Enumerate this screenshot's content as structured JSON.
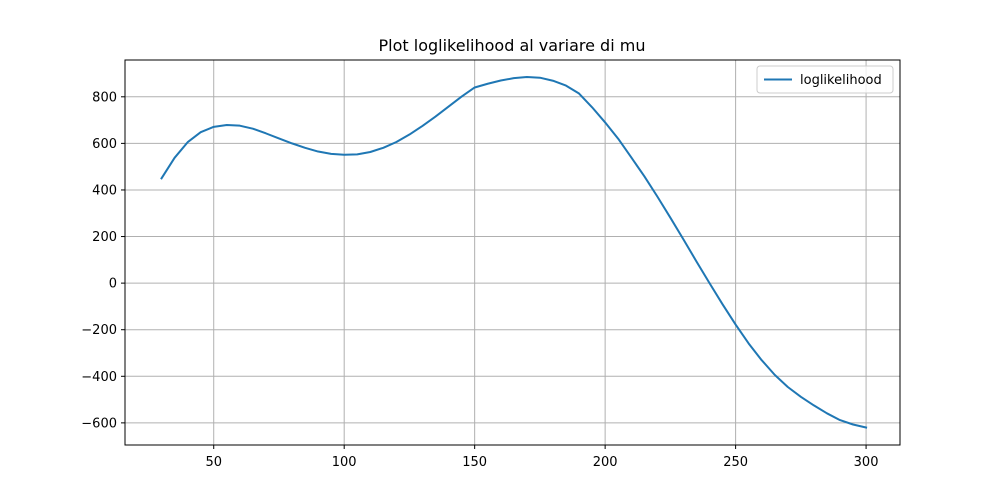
{
  "chart_data": {
    "type": "line",
    "title": "Plot loglikelihood al variare di mu",
    "xlabel": "",
    "ylabel": "",
    "xlim": [
      16,
      313
    ],
    "ylim": [
      -695,
      958
    ],
    "xticks": [
      50,
      100,
      150,
      200,
      250,
      300
    ],
    "yticks": [
      -600,
      -400,
      -200,
      0,
      200,
      400,
      600,
      800
    ],
    "ytick_labels": [
      "−600",
      "−400",
      "−200",
      "0",
      "200",
      "400",
      "600",
      "800"
    ],
    "grid": true,
    "legend_position": "top-right",
    "series": [
      {
        "name": "loglikelihood",
        "color": "#1f77b4",
        "x": [
          30,
          35,
          40,
          45,
          50,
          55,
          60,
          65,
          70,
          75,
          80,
          85,
          90,
          95,
          100,
          105,
          110,
          115,
          120,
          125,
          130,
          135,
          140,
          145,
          150,
          155,
          160,
          165,
          170,
          175,
          180,
          185,
          190,
          195,
          200,
          205,
          210,
          215,
          220,
          225,
          230,
          235,
          240,
          245,
          250,
          255,
          260,
          265,
          270,
          275,
          280,
          285,
          290,
          295,
          300
        ],
        "y": [
          450,
          538,
          605,
          648,
          671,
          679,
          676,
          663,
          643,
          621,
          600,
          581,
          565,
          555,
          551,
          553,
          563,
          581,
          606,
          638,
          675,
          715,
          758,
          801,
          840,
          856,
          870,
          880,
          885,
          882,
          869,
          848,
          814,
          755,
          690,
          620,
          540,
          459,
          372,
          281,
          188,
          93,
          0,
          -91,
          -178,
          -259,
          -331,
          -394,
          -446,
          -488,
          -525,
          -559,
          -588,
          -607,
          -620
        ]
      }
    ]
  }
}
